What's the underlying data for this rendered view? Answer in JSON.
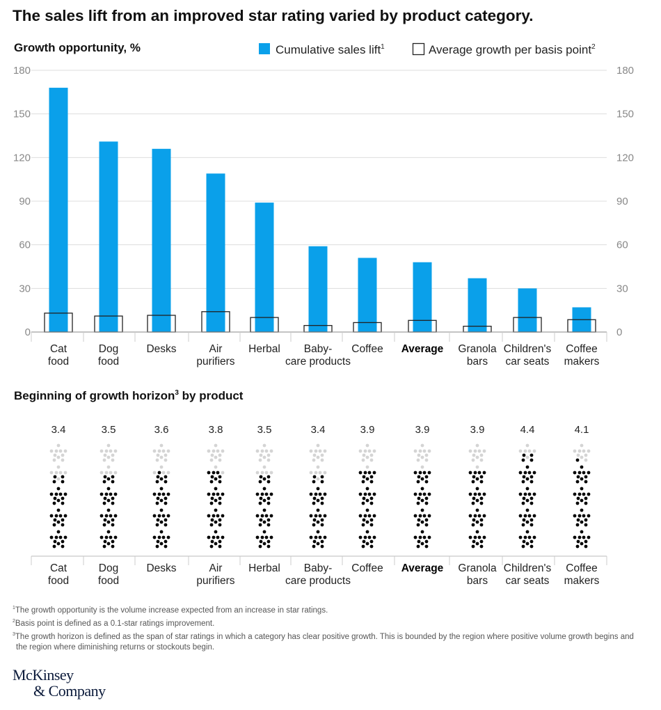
{
  "title": "The sales lift from an improved star rating varied by product category.",
  "colors": {
    "bar": "#0aa0ea",
    "box_stroke": "#222222",
    "grid": "#dddddd",
    "dot_on": "#000000",
    "dot_off": "#d4d4d4"
  },
  "chart_data": [
    {
      "type": "bar",
      "title": "Growth opportunity, %",
      "ylabel": "%",
      "ylim": [
        0,
        180
      ],
      "yticks": [
        "0",
        "30",
        "60",
        "90",
        "120",
        "150",
        "180"
      ],
      "grid": true,
      "legend_placement": "top-right",
      "categories": [
        "Cat\nfood",
        "Dog\nfood",
        "Desks",
        "Air\npurifiers",
        "Herbal",
        "Baby-\ncare products",
        "Coffee",
        "Average",
        "Granola\nbars",
        "Children's\ncar seats",
        "Coffee\nmakers"
      ],
      "series": [
        {
          "name": "Cumulative sales lift",
          "superscript": "1",
          "values": [
            168,
            131,
            126,
            109,
            89,
            59,
            51,
            48,
            37,
            30,
            17
          ]
        },
        {
          "name": "Average growth per basis point",
          "superscript": "2",
          "values": [
            13,
            11,
            11.5,
            14,
            10,
            4.5,
            6.5,
            8,
            4,
            10,
            8.5
          ]
        }
      ]
    },
    {
      "type": "table",
      "title": "Beginning of growth horizon",
      "title_superscript": "3",
      "title_suffix": " by product",
      "categories": [
        "Cat\nfood",
        "Dog\nfood",
        "Desks",
        "Air\npurifiers",
        "Herbal",
        "Baby-\ncare products",
        "Coffee",
        "Average",
        "Granola\nbars",
        "Children's\ncar seats",
        "Coffee\nmakers"
      ],
      "ratings": [
        "3.4",
        "3.5",
        "3.6",
        "3.8",
        "3.5",
        "3.4",
        "3.9",
        "3.9",
        "3.9",
        "4.4",
        "4.1"
      ],
      "max_stars": 5
    }
  ],
  "footnotes": [
    {
      "mark": "1",
      "text": "The growth opportunity is the volume increase expected from an increase in star ratings."
    },
    {
      "mark": "2",
      "text": "Basis point is defined as a 0.1-star ratings improvement."
    },
    {
      "mark": "3",
      "text": "The growth horizon is defined as the span of star ratings in which a category has clear positive growth. This is bounded by the region where positive volume growth begins and the region where diminishing returns or stockouts begin."
    }
  ],
  "logo": {
    "line1": "McKinsey",
    "line2": "& Company"
  }
}
